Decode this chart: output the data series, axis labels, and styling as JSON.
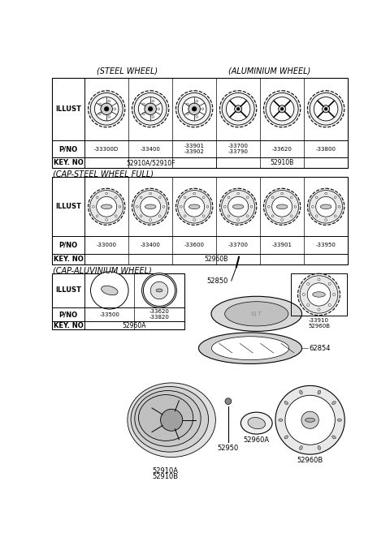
{
  "bg_color": "#ffffff",
  "section1_header_left": "(STEEL WHEEL)",
  "section1_header_right": "(ALUMINIUM WHEEL)",
  "section2_header": "(CAP-STEEL WHEEL FULL)",
  "section3_header": "(CAP-ALUVINIUM WHEEL)",
  "table1_cols": [
    {
      "pno": "-33300D"
    },
    {
      "pno": "-33901\n-33902"
    },
    {
      "pno": "-33400"
    },
    {
      "pno": "-33700\n-33790"
    },
    {
      "pno": "-33620"
    },
    {
      "pno": "-33800"
    }
  ],
  "table1_key1": "52910A/52910F",
  "table1_key2": "52910B",
  "table2_cols": [
    {
      "pno": "-33000"
    },
    {
      "pno": "-33400"
    },
    {
      "pno": "-33600"
    },
    {
      "pno": "-33700"
    },
    {
      "pno": "-33901"
    },
    {
      "pno": "-33950"
    }
  ],
  "table2_key": "52960B",
  "table3_cols": [
    {
      "pno": "-33500"
    },
    {
      "pno": "-33620\n-33820"
    }
  ],
  "table3_key": "52960A",
  "row_labels": [
    "ILLUST",
    "P/NO",
    "KEY. NO"
  ]
}
